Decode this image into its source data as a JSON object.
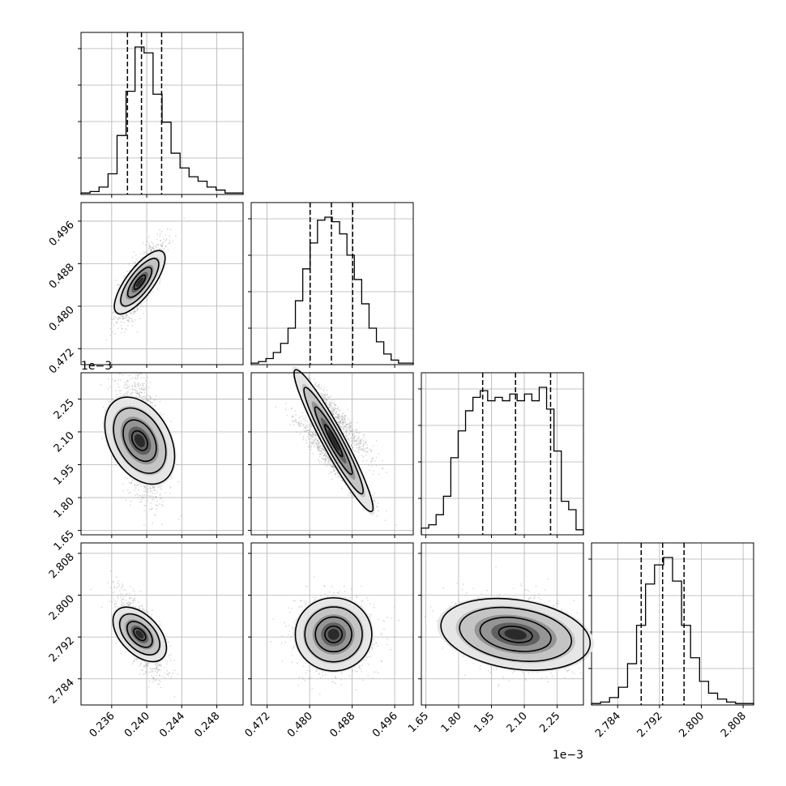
{
  "chart_data": {
    "type": "corner",
    "colors": {
      "line": "#000000",
      "grid": "#b0b0b0",
      "scatter": "#9a9a9a",
      "background": "#ffffff"
    },
    "grid": true,
    "parameters": [
      {
        "range": [
          0.2325,
          0.251
        ],
        "ticks": [
          0.236,
          0.24,
          0.244,
          0.248
        ],
        "tick_labels": [
          "0.236",
          "0.240",
          "0.244",
          "0.248"
        ],
        "multiplier": "",
        "mean": 0.2392,
        "sd": 0.0013,
        "quantiles": [
          0.2378,
          0.2394,
          0.2417
        ]
      },
      {
        "range": [
          0.469,
          0.4995
        ],
        "ticks": [
          0.472,
          0.48,
          0.488,
          0.496
        ],
        "tick_labels": [
          "0.472",
          "0.480",
          "0.488",
          "0.496"
        ],
        "multiplier": "",
        "mean": 0.4845,
        "sd": 0.0036,
        "quantiles": [
          0.4801,
          0.4841,
          0.4881
        ]
      },
      {
        "range": [
          1.63,
          2.37
        ],
        "ticks": [
          1.65,
          1.8,
          1.95,
          2.1,
          2.25
        ],
        "tick_labels": [
          "1.65",
          "1.80",
          "1.95",
          "2.10",
          "2.25"
        ],
        "multiplier": "1e−3",
        "mean": 2.06,
        "sd": 0.14,
        "quantiles": [
          1.91,
          2.06,
          2.22
        ]
      },
      {
        "range": [
          2.779,
          2.81
        ],
        "ticks": [
          2.784,
          2.792,
          2.8,
          2.808
        ],
        "tick_labels": [
          "2.784",
          "2.792",
          "2.800",
          "2.808"
        ],
        "multiplier": "",
        "mean": 2.7925,
        "sd": 0.0035,
        "quantiles": [
          2.7885,
          2.7926,
          2.7967
        ]
      }
    ],
    "histograms": [
      [
        1,
        2,
        5,
        14,
        40,
        70,
        100,
        96,
        68,
        49,
        28,
        18,
        12,
        9,
        5,
        3,
        1,
        1
      ],
      [
        1,
        2,
        4,
        8,
        14,
        24,
        42,
        63,
        80,
        95,
        97,
        94,
        86,
        72,
        56,
        40,
        24,
        15,
        7,
        3,
        1,
        1
      ],
      [
        4,
        6,
        12,
        23,
        46,
        62,
        74,
        82,
        86,
        80,
        82,
        80,
        84,
        80,
        84,
        80,
        88,
        75,
        50,
        20,
        15,
        3
      ],
      [
        1,
        2,
        5,
        12,
        28,
        54,
        82,
        95,
        100,
        84,
        54,
        32,
        16,
        8,
        4,
        2,
        1,
        1
      ]
    ],
    "correlations": [
      [
        "1,0",
        0.8
      ],
      [
        "2,0",
        -0.55
      ],
      [
        "2,1",
        -0.95
      ],
      [
        "3,0",
        -0.65
      ],
      [
        "3,1",
        0.0
      ],
      [
        "3,2",
        -0.3
      ]
    ]
  }
}
